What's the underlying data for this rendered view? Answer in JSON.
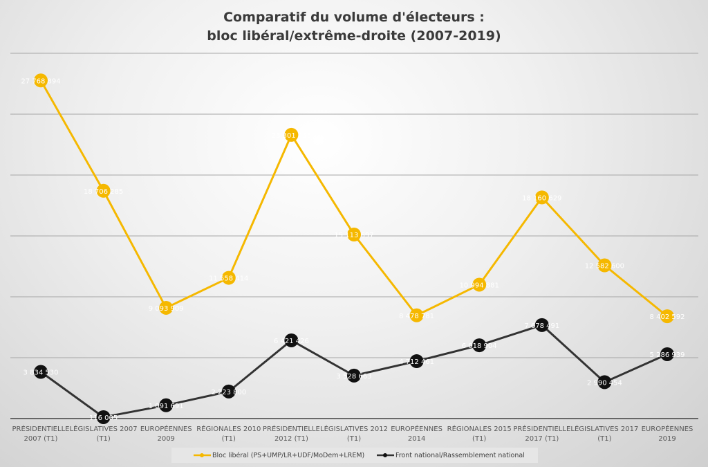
{
  "chart_data": {
    "type": "line",
    "title_lines": [
      "Comparatif du volume d'électeurs :",
      "bloc libéral/extrême-droite (2007-2019)"
    ],
    "categories": [
      [
        "PRÉSIDENTIELLE",
        "2007 (T1)"
      ],
      [
        "LÉGISLATIVES 2007",
        "(T1)"
      ],
      [
        "EUROPÉENNES",
        "2009"
      ],
      [
        "RÉGIONALES 2010",
        "(T1)"
      ],
      [
        "PRÉSIDENTIELLE",
        "2012 (T1)"
      ],
      [
        "LÉGISLATIVES 2012",
        "(T1)"
      ],
      [
        "EUROPÉENNES",
        "2014"
      ],
      [
        "RÉGIONALES 2015",
        "(T1)"
      ],
      [
        "PRÉSIDENTIELLE",
        "2017 (T1)"
      ],
      [
        "LÉGISLATIVES 2017",
        "(T1)"
      ],
      [
        "EUROPÉENNES",
        "2019"
      ]
    ],
    "series": [
      {
        "name": "Bloc libéral (PS+UMP/LR+UDF/MoDem+LREM)",
        "color": "#f5b800",
        "values": [
          27768894,
          18706285,
          9093909,
          11558414,
          23301456,
          15113697,
          8478781,
          10994881,
          18160629,
          12582600,
          8402592
        ],
        "labels": [
          "27 768 894",
          "18 706 285",
          "9 093 909",
          "11 558 414",
          "23 301 456",
          "15 113 697",
          "8 478 781",
          "10 994 881",
          "18 160 629",
          "12 582 600",
          "8 402 592"
        ]
      },
      {
        "name": "Front national/Rassemblement national",
        "color": "#111111",
        "values": [
          3834530,
          116005,
          1091691,
          2223800,
          6421426,
          3528663,
          4712461,
          6018904,
          7678491,
          2990454,
          5286939
        ],
        "labels": [
          "3 834 530",
          "116 005",
          "1 091 691",
          "2 223 800",
          "6 421 426",
          "3 528 663",
          "4 712 461",
          "6 018 904",
          "7 678 491",
          "2 990 454",
          "5 286 939"
        ]
      }
    ],
    "ylim": [
      0,
      30000000
    ],
    "y_gridlines": [
      5000000,
      10000000,
      15000000,
      20000000,
      25000000,
      30000000
    ],
    "y_tick_labels_shown": false,
    "grid": true,
    "legend_position": "bottom"
  }
}
